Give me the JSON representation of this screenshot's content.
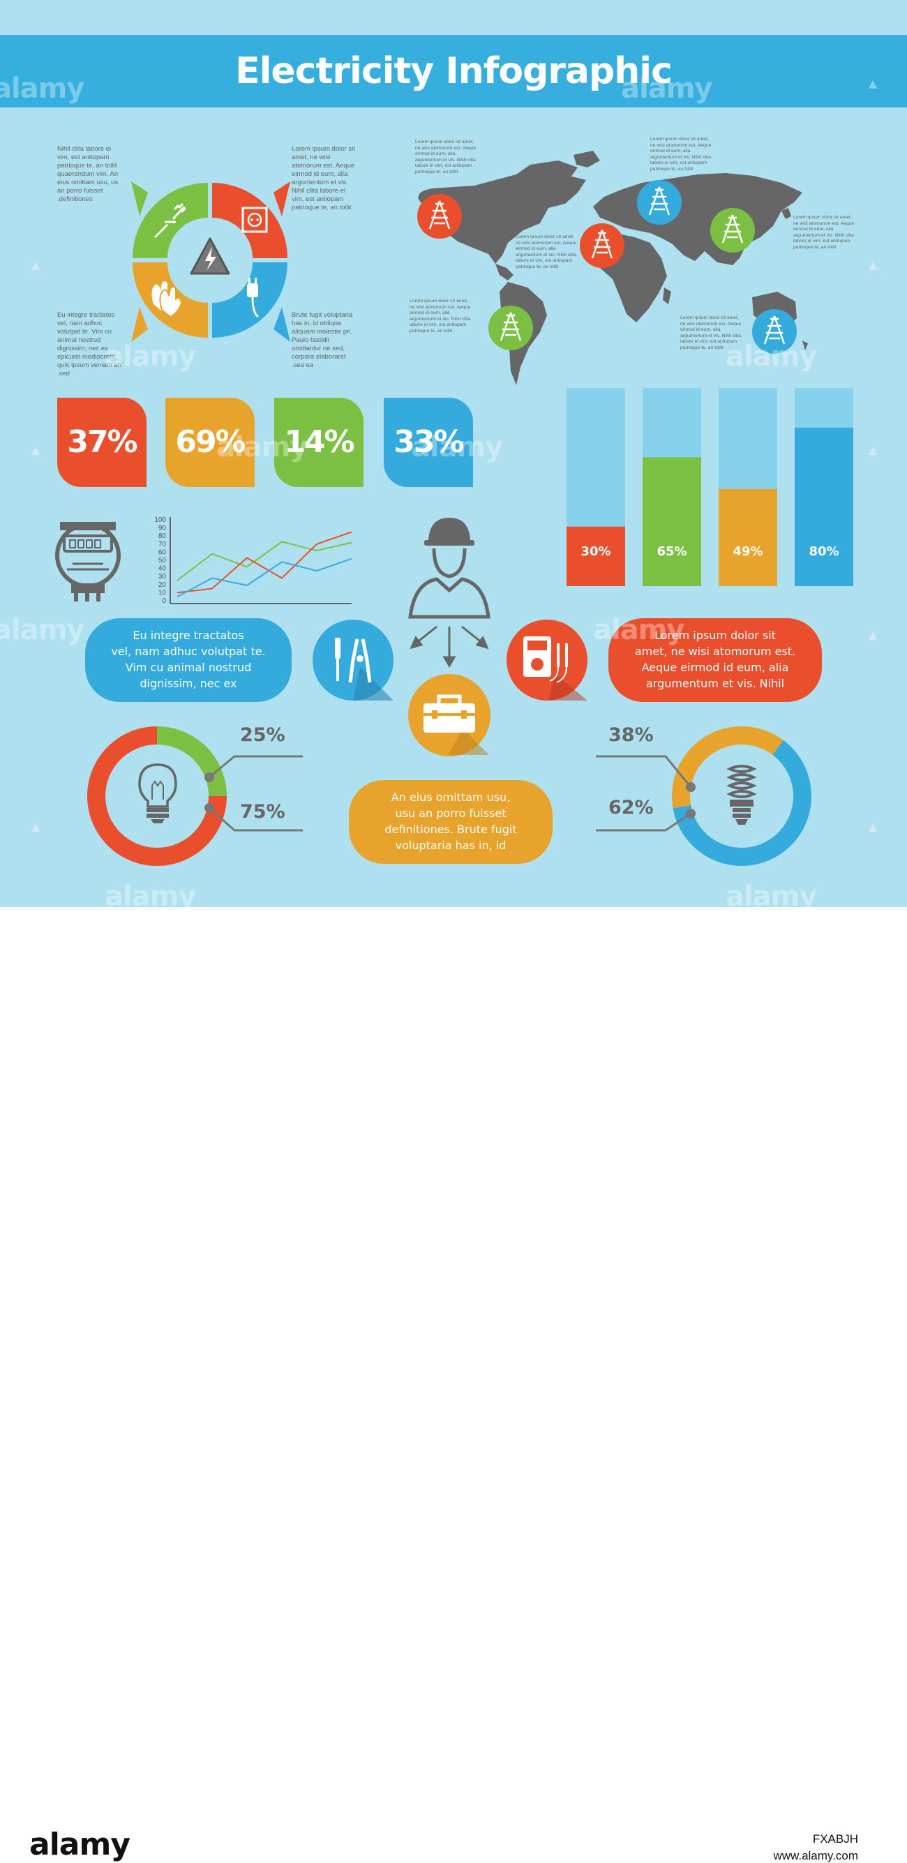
{
  "title": "Electricity Infographic",
  "colors": {
    "background": "#aee0ef",
    "banner": "#36aede",
    "red": "#e94f2c",
    "green": "#7bc043",
    "orange": "#e8a32d",
    "blue": "#35aadc",
    "light_blue": "#86d1ec",
    "gray": "#666666"
  },
  "texts": {
    "top_left": "Nihil clita labore ei\nvim, est antiopam\npatrioque te, an tollit\nquaerendum vim. An\neius omittam usu, us\nan porro fuisset\n.definitiones",
    "top_mid": "Lorem ipsum dolor sit\namet, ne wisi\natomorum est. Aeque\neirmod id eum, alia\nargumentum et vis.\nNihil clita labore ei\nvim, est antiopam\npatrioque te, an tollit",
    "bottom_left": "Eu integre tractatos\nvel, nam adhuc\nvolutpat te. Vim cu\nanimal nostrud\ndignissim, nec ex\nepicurei mediocrem,\nquis ipsum veniam an\n.sed",
    "bottom_mid": "Brute fugit voluptaria\nhas in, id oblique\naliquam molestie pri.\nPaulo fastidii\nomittantur ne sed,\ncorpora elaboraret\n.sea ea",
    "map_1": "Lorem ipsum dolor sit amet,\nne wisi atomorum est. Aeque\neirmod id eum, alia\nargumentum et vis. Nihil clita\nlabore ei vim, est antiopam\npatrioque te, an tollit",
    "map_2": "Lorem ipsum dolor sit amet,\nne wisi atomorum est. Aeque\neirmod id eum, alia\nargumentum et vis. Nihil clita\nlabore ei vim, est antiopam\npatrioque te, an tollit",
    "map_3": "Lorem ipsum dolor sit amet,\nne wisi atomorum est. Aeque\neirmod id eum, alia\nargumentum et vis. Nihil clita\nlabore ei vim, est antiopam\npatrioque te, an tollit",
    "map_4": "Lorem ipsum dolor sit amet,\nne wisi atomorum est. Aeque\neirmod id eum, alia\nargumentum et vis. Nihil clita\nlabore ei vim, est antiopam\npatrioque te, an tollit",
    "map_5": "Lorem ipsum dolor sit amet,\nne wisi atomorum est. Aeque\neirmod id eum, alia\nargumentum et vis. Nihil clita\nlabore ei vim, est antiopam\npatrioque te, an tollit",
    "map_6": "Lorem ipsum dolor sit amet,\nne wisi atomorum est. Aeque\neirmod id eum, alia\nargumentum et vis. Nihil clita\nlabore ei vim, est antiopam\npatrioque te, an tollit"
  },
  "percent_tiles": [
    {
      "label": "37%",
      "color": "#e94f2c"
    },
    {
      "label": "69%",
      "color": "#e8a32d"
    },
    {
      "label": "14%",
      "color": "#7bc043"
    },
    {
      "label": "33%",
      "color": "#35aadc"
    }
  ],
  "pills": {
    "blue": "Eu integre tractatos\nvel, nam adhuc volutpat te.\nVim cu animal nostrud\ndignissim, nec ex",
    "red": "Lorem ipsum dolor sit\namet, ne wisi atomorum est.\nAeque eirmod id eum, alia\nargumentum et vis. Nihil",
    "orange": "An eius omittam usu,\nusu an porro fuisset\ndefinitiones. Brute fugit\nvoluptaria has in, id"
  },
  "watermark": "alamy",
  "footer": {
    "logo": "alamy",
    "image_id": "FXABJH",
    "url": "www.alamy.com"
  },
  "chart_data": [
    {
      "type": "bar",
      "categories": [
        "1",
        "2",
        "3",
        "4"
      ],
      "values": [
        30,
        65,
        49,
        80
      ],
      "labels": [
        "30%",
        "65%",
        "49%",
        "80%"
      ],
      "colors": [
        "#e94f2c",
        "#7bc043",
        "#e8a32d",
        "#35aadc"
      ],
      "ylim": [
        0,
        100
      ]
    },
    {
      "type": "line",
      "x": [
        0,
        1,
        2,
        3,
        4,
        5
      ],
      "yticks": [
        "100",
        "90",
        "80",
        "70",
        "60",
        "50",
        "40",
        "30",
        "20",
        "10",
        "0"
      ],
      "ylim": [
        0,
        100
      ],
      "series": [
        {
          "color": "#7bc043",
          "values": [
            25,
            58,
            42,
            73,
            62,
            72
          ]
        },
        {
          "color": "#e94f2c",
          "values": [
            10,
            15,
            53,
            28,
            70,
            85
          ]
        },
        {
          "color": "#35aadc",
          "values": [
            5,
            28,
            19,
            48,
            37,
            52
          ]
        }
      ]
    },
    {
      "type": "pie",
      "labels": [
        "25%",
        "75%"
      ],
      "values": [
        25,
        75
      ],
      "colors": [
        "#7bc043",
        "#e94f2c"
      ]
    },
    {
      "type": "pie",
      "labels": [
        "38%",
        "62%"
      ],
      "values": [
        38,
        62
      ],
      "colors": [
        "#e8a32d",
        "#35aadc"
      ]
    }
  ]
}
